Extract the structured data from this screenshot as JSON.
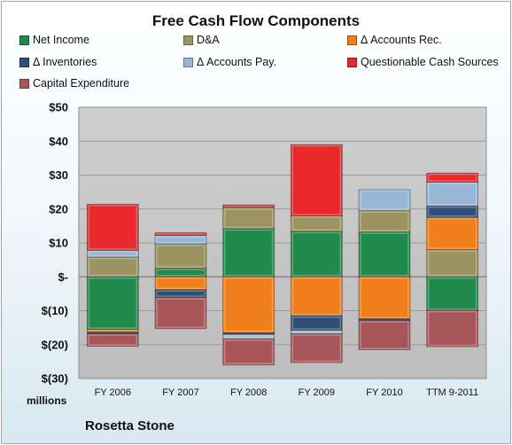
{
  "company": "Rosetta Stone",
  "colors": {
    "net_income": "#1f8a4c",
    "da": "#9c9460",
    "accounts_rec": "#ef7f1a",
    "inventories": "#2f4f76",
    "accounts_pay": "#98b6d6",
    "questionable": "#e8282a",
    "capex": "#a85559"
  },
  "chart_data": {
    "type": "bar",
    "stacked": true,
    "title": "Free Cash Flow Components",
    "xlabel": "",
    "ylabel": "millions",
    "ylim": [
      -30,
      50
    ],
    "yticks": [
      50,
      40,
      30,
      20,
      10,
      0,
      -10,
      -20,
      -30
    ],
    "ytick_labels": [
      "$50",
      "$40",
      "$30",
      "$20",
      "$10",
      "$-",
      "$(10)",
      "$(20)",
      "$(30)"
    ],
    "grid": true,
    "legend_position": "top",
    "categories": [
      "FY 2006",
      "FY 2007",
      "FY 2008",
      "FY 2009",
      "FY 2010",
      "TTM 9-2011"
    ],
    "series": [
      {
        "name": "Net Income",
        "color_key": "net_income",
        "values": [
          -15.5,
          2.5,
          14.2,
          13.4,
          13.2,
          -9.9
        ]
      },
      {
        "name": "D&A",
        "color_key": "da",
        "values": [
          5.8,
          7.2,
          6.2,
          4.6,
          6.3,
          8.0
        ]
      },
      {
        "name": "Δ Accounts Rec.",
        "color_key": "accounts_rec",
        "values": [
          -0.8,
          -3.8,
          -16.5,
          -11.5,
          -12.4,
          9.5
        ]
      },
      {
        "name": "Δ Inventories",
        "color_key": "inventories",
        "values": [
          -0.5,
          -2.3,
          -0.5,
          -4.3,
          -0.5,
          3.4
        ]
      },
      {
        "name": "Δ Accounts Pay.",
        "color_key": "accounts_pay",
        "values": [
          2.0,
          2.5,
          -1.3,
          -1.0,
          6.2,
          7.0
        ]
      },
      {
        "name": "Questionable Cash Sources",
        "color_key": "questionable",
        "values": [
          13.6,
          0.8,
          0.8,
          21.0,
          0.0,
          2.7
        ]
      },
      {
        "name": "Capital Expenditure",
        "color_key": "capex",
        "values": [
          -3.7,
          -9.2,
          -7.7,
          -8.5,
          -8.6,
          -10.7
        ]
      }
    ]
  }
}
